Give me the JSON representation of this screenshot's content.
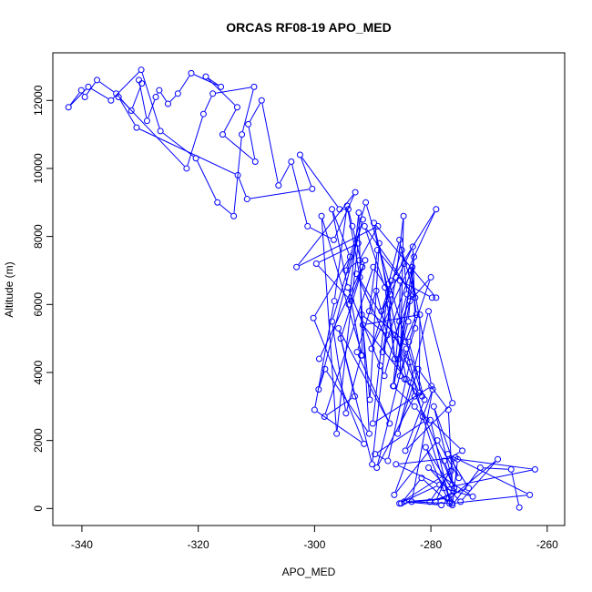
{
  "chart_data": {
    "type": "line",
    "title": "ORCAS RF08-19 APO_MED",
    "xlabel": "APO_MED",
    "ylabel": "Altitude (m)",
    "xlim": [
      -345,
      -257
    ],
    "ylim": [
      -500,
      13400
    ],
    "x_ticks": [
      -340,
      -320,
      -300,
      -280,
      -260
    ],
    "y_ticks": [
      0,
      2000,
      4000,
      6000,
      8000,
      10000,
      12000
    ],
    "x_tick_labels": [
      "-340",
      "-320",
      "-300",
      "-280",
      "-260"
    ],
    "y_tick_labels": [
      "0",
      "2000",
      "4000",
      "6000",
      "8000",
      "10000",
      "12000"
    ],
    "grid": false,
    "series_color": "#0000ff",
    "series": [
      {
        "x": [
          -264.8,
          -266.2,
          -271.5,
          -276.3,
          -275.4,
          -262.1,
          -277.8,
          -272.8,
          -280.4,
          -274.9,
          -268.5,
          -278.2,
          -284.6,
          -276.9,
          -276.4,
          -263.0,
          -277.1,
          -273.5,
          -280.2,
          -276.6,
          -285.4,
          -278.5,
          -286.0,
          -275.8,
          -279.2,
          -276.1,
          -280.9,
          -277.2,
          -285.1,
          -281.6,
          -276.8,
          -283.3,
          -279.7,
          -286.3,
          -278.9,
          -275.2,
          -279.5,
          -276.0,
          -277.7,
          -274.6,
          -280.1,
          -276.7,
          -281.4,
          -284.2,
          -289.3,
          -282.8,
          -283.5,
          -276.3,
          -277.0,
          -282.2,
          -285.7,
          -280.4,
          -276.3,
          -284.4,
          -281.1,
          -283.8,
          -280.0,
          -283.6,
          -286.4,
          -282.9,
          -283.9,
          -285.5,
          -283.2,
          -288.3,
          -286.0,
          -284.7,
          -285.3,
          -282.7,
          -283.1,
          -288.5,
          -286.8,
          -279.1,
          -290.2,
          -285.0,
          -282.7,
          -291.4,
          -287.9,
          -286.2,
          -287.2,
          -288.9,
          -290.5,
          -291.9,
          -287.5,
          -289.4,
          -292.7,
          -287.1,
          -295.9,
          -290.1,
          -286.9,
          -289.9,
          -298.3,
          -293.1,
          -295.5,
          -291.3,
          -294.1,
          -292.4,
          -291.8,
          -298.8,
          -296.2,
          -292.5,
          -299.7,
          -293.7,
          -292.0,
          -294.6,
          -297.0,
          -291.7,
          -299.3,
          -298.2,
          -290.6,
          -292.2,
          -294.4,
          -296.6,
          -300.0,
          -291.5,
          -300.2,
          -293.9,
          -297.0,
          -294.3,
          -288.7,
          -288.0,
          -284.1,
          -284.6,
          -285.4,
          -287.3,
          -290.0,
          -279.9,
          -283.4,
          -282.5,
          -284.4,
          -290.6,
          -289.2,
          -283.1,
          -286.2,
          -282.0,
          -281.9,
          -291.7,
          -284.2,
          -289.8,
          -279.1,
          -279.8,
          -285.3,
          -285.4,
          -286.5,
          -282.8,
          -280.8,
          -289.6,
          -287.4,
          -283.6,
          -292.8,
          -284.5,
          -281.5,
          -291.2,
          -294.6,
          -292.3,
          -289.1,
          -303.1,
          -293.0,
          -296.7,
          -301.2,
          -304.0,
          -306.2,
          -309.1,
          -311.4,
          -310.2,
          -315.8,
          -313.3,
          -318.7,
          -316.1,
          -321.2,
          -323.5,
          -325.2,
          -326.7,
          -327.3,
          -328.8,
          -330.2,
          -329.7,
          -331.5,
          -334.1,
          -337.4,
          -339.5,
          -340.1,
          -342.3,
          -338.9,
          -335.0,
          -329.8,
          -326.5,
          -320.4,
          -316.7,
          -313.9,
          -312.5,
          -310.4,
          -317.5,
          -319.1,
          -322.0,
          -333.7,
          -330.6,
          -313.2,
          -311.6,
          -300.4,
          -302.5,
          -295.7,
          -294.2,
          -293.5,
          -291.8,
          -299.2
        ],
        "y": [
          30,
          1150,
          1200,
          100,
          1450,
          1150,
          600,
          350,
          1200,
          200,
          1450,
          100,
          200,
          300,
          150,
          400,
          1600,
          600,
          200,
          1100,
          150,
          700,
          1300,
          1500,
          200,
          500,
          1800,
          300,
          150,
          900,
          150,
          200,
          3500,
          400,
          2000,
          900,
          3000,
          600,
          1400,
          1700,
          2600,
          200,
          2700,
          4700,
          1200,
          3300,
          3700,
          700,
          2900,
          4100,
          2200,
          5800,
          3100,
          1700,
          3200,
          4900,
          6800,
          6100,
          3600,
          7400,
          5500,
          4400,
          7100,
          4600,
          6800,
          8600,
          3900,
          5300,
          7700,
          5800,
          6700,
          8800,
          4700,
          7600,
          6200,
          8300,
          6500,
          4400,
          6000,
          7800,
          3200,
          5700,
          5100,
          6400,
          4600,
          2500,
          5300,
          1300,
          6300,
          7100,
          2700,
          3300,
          5000,
          7300,
          6000,
          8700,
          4500,
          8600,
          2200,
          7800,
          7200,
          6100,
          4500,
          2800,
          5500,
          8500,
          3500,
          4100,
          2200,
          6800,
          8900,
          6100,
          2900,
          1900,
          5600,
          7400,
          8800,
          6500,
          4200,
          3900,
          6300,
          7200,
          7900,
          6600,
          2500,
          3600,
          7000,
          5700,
          4900,
          5800,
          7600,
          6300,
          5100,
          3400,
          5700,
          5400,
          3800,
          8400,
          6200,
          6200,
          6700,
          5500,
          3600,
          3000,
          2600,
          1600,
          1400,
          4300,
          6900,
          3800,
          3300,
          9000,
          7000,
          7300,
          8300,
          7100,
          9300,
          7900,
          8300,
          10200,
          9500,
          12000,
          11300,
          10200,
          11000,
          11800,
          12700,
          12400,
          12800,
          12200,
          11900,
          12300,
          12100,
          11400,
          12600,
          12500,
          11700,
          12200,
          12600,
          12100,
          12300,
          11800,
          12400,
          12000,
          12900,
          11100,
          10300,
          9000,
          8600,
          11000,
          12400,
          12200,
          11600,
          10000,
          12100,
          11200,
          9800,
          9100,
          9400,
          10400,
          8800,
          8800,
          8300,
          7100,
          4400
        ]
      }
    ]
  }
}
